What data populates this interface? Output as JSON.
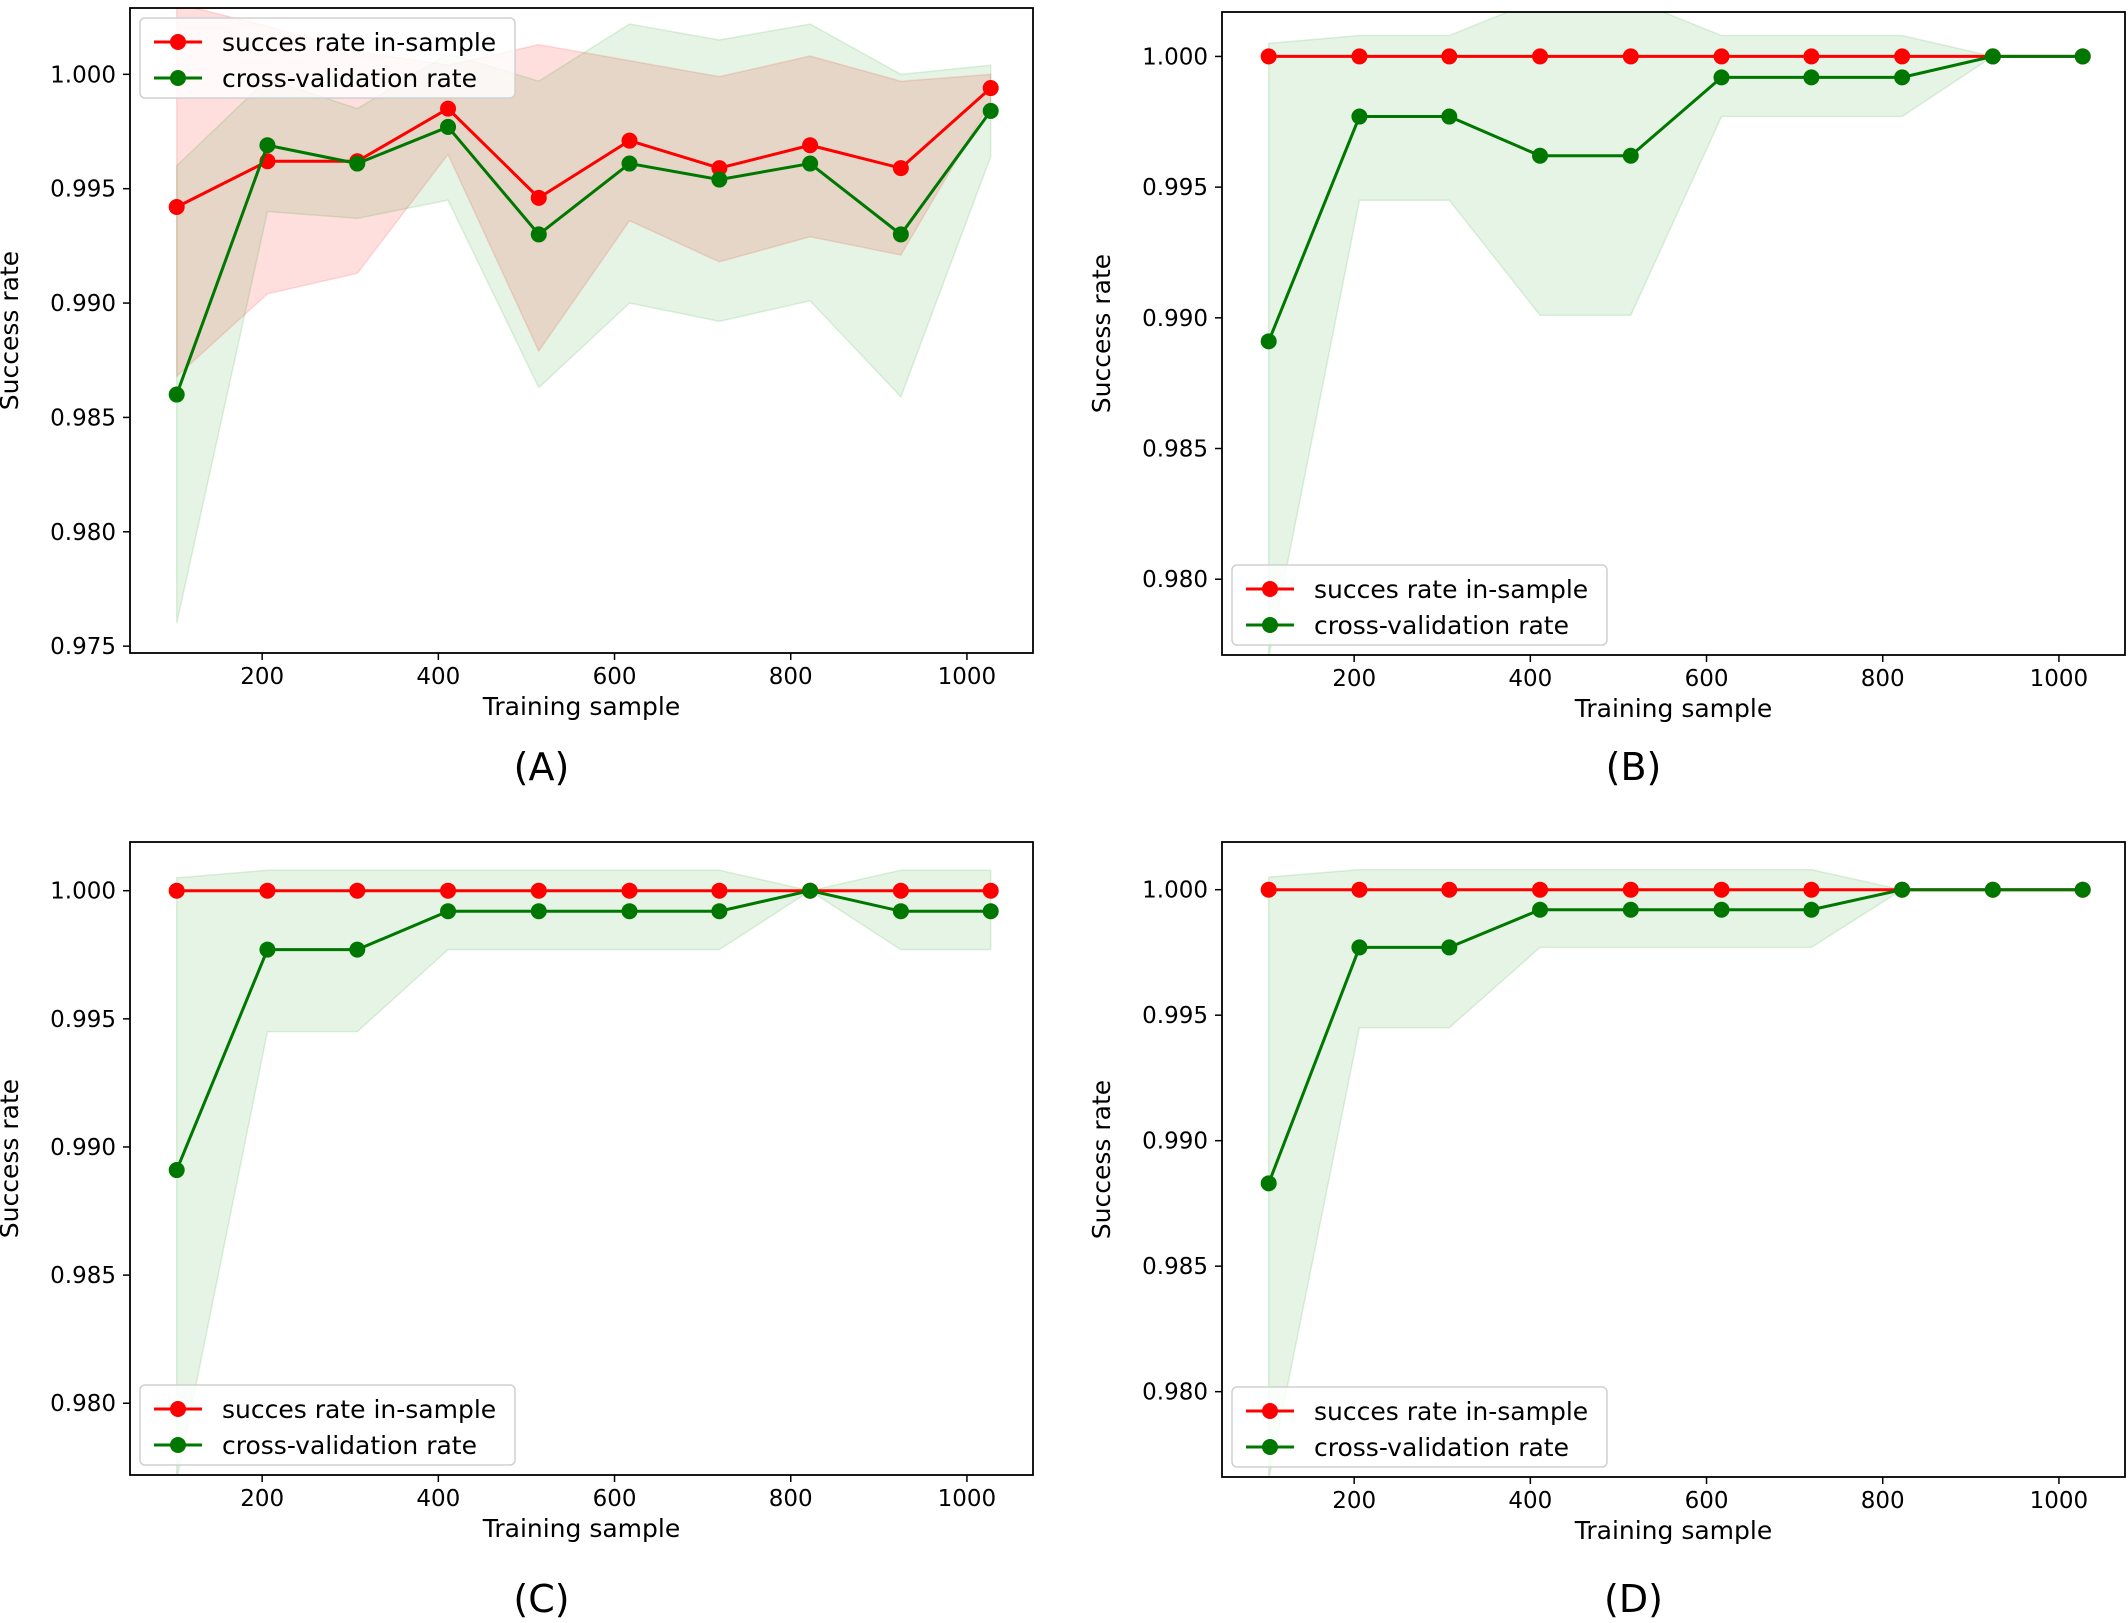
{
  "chart_data": [
    {
      "panel_label": "(A)",
      "type": "line",
      "xlabel": "Training sample",
      "ylabel": "Success rate",
      "xticks": [
        200,
        400,
        600,
        800,
        1000
      ],
      "yticks": [
        0.975,
        0.98,
        0.985,
        0.99,
        0.995,
        1.0
      ],
      "tick_labels_x": [
        "200",
        "400",
        "600",
        "800",
        "1000"
      ],
      "tick_labels_y": [
        "0.975",
        "0.980",
        "0.985",
        "0.990",
        "0.995",
        "1.000"
      ],
      "xlim": [
        50,
        1075
      ],
      "ylim": [
        0.9747,
        1.0029
      ],
      "grid": false,
      "legend_position": "upper-left",
      "x": [
        103,
        206,
        308,
        411,
        514,
        617,
        719,
        822,
        925,
        1027
      ],
      "series": [
        {
          "name": "succes rate in-sample",
          "color": "#ff0000",
          "values": [
            0.9942,
            0.9962,
            0.9962,
            0.9985,
            0.9946,
            0.9971,
            0.9959,
            0.9969,
            0.9959,
            0.9994
          ],
          "band_lower": [
            0.9868,
            0.9904,
            0.9913,
            0.9965,
            0.9879,
            0.9936,
            0.9918,
            0.9929,
            0.9921,
            0.9988
          ],
          "band_upper": [
            1.0031,
            1.0021,
            1.001,
            1.0004,
            1.0013,
            1.0006,
            0.9999,
            1.0008,
            0.9997,
            1.0
          ]
        },
        {
          "name": "cross-validation rate",
          "color": "#007700",
          "values": [
            0.986,
            0.9969,
            0.9961,
            0.9977,
            0.993,
            0.9961,
            0.9954,
            0.9961,
            0.993,
            0.9984
          ],
          "band_lower": [
            0.976,
            0.994,
            0.9937,
            0.9945,
            0.9863,
            0.99,
            0.9892,
            0.9901,
            0.9859,
            0.9964
          ],
          "band_upper": [
            0.996,
            0.9998,
            0.9985,
            1.0009,
            0.9997,
            1.0022,
            1.0015,
            1.0022,
            1.0,
            1.0004
          ]
        }
      ]
    },
    {
      "panel_label": "(B)",
      "type": "line",
      "xlabel": "Training sample",
      "ylabel": "Success rate",
      "xticks": [
        200,
        400,
        600,
        800,
        1000
      ],
      "yticks": [
        0.98,
        0.985,
        0.99,
        0.995,
        1.0
      ],
      "tick_labels_x": [
        "200",
        "400",
        "600",
        "800",
        "1000"
      ],
      "tick_labels_y": [
        "0.980",
        "0.985",
        "0.990",
        "0.995",
        "1.000"
      ],
      "xlim": [
        50,
        1075
      ],
      "ylim": [
        0.9771,
        1.0017
      ],
      "grid": false,
      "legend_position": "lower-left",
      "x": [
        103,
        206,
        308,
        411,
        514,
        617,
        719,
        822,
        925,
        1027
      ],
      "series": [
        {
          "name": "succes rate in-sample",
          "color": "#ff0000",
          "values": [
            1.0,
            1.0,
            1.0,
            1.0,
            1.0,
            1.0,
            1.0,
            1.0,
            1.0,
            1.0
          ],
          "band_lower": [
            1.0,
            1.0,
            1.0,
            1.0,
            1.0,
            1.0,
            1.0,
            1.0,
            1.0,
            1.0
          ],
          "band_upper": [
            1.0,
            1.0,
            1.0,
            1.0,
            1.0,
            1.0,
            1.0,
            1.0,
            1.0,
            1.0
          ]
        },
        {
          "name": "cross-validation rate",
          "color": "#007700",
          "values": [
            0.9891,
            0.9977,
            0.9977,
            0.9962,
            0.9962,
            0.9992,
            0.9992,
            0.9992,
            1.0,
            1.0
          ],
          "band_lower": [
            0.977,
            0.9945,
            0.9945,
            0.9901,
            0.9901,
            0.9977,
            0.9977,
            0.9977,
            1.0,
            1.0
          ],
          "band_upper": [
            1.0005,
            1.0008,
            1.0008,
            1.0022,
            1.0022,
            1.0008,
            1.0008,
            1.0008,
            1.0,
            1.0
          ]
        }
      ]
    },
    {
      "panel_label": "(C)",
      "type": "line",
      "xlabel": "Training sample",
      "ylabel": "Success rate",
      "xticks": [
        200,
        400,
        600,
        800,
        1000
      ],
      "yticks": [
        0.98,
        0.985,
        0.99,
        0.995,
        1.0
      ],
      "tick_labels_x": [
        "200",
        "400",
        "600",
        "800",
        "1000"
      ],
      "tick_labels_y": [
        "0.980",
        "0.985",
        "0.990",
        "0.995",
        "1.000"
      ],
      "xlim": [
        50,
        1075
      ],
      "ylim": [
        0.9772,
        1.0019
      ],
      "grid": false,
      "legend_position": "lower-left",
      "x": [
        103,
        206,
        308,
        411,
        514,
        617,
        719,
        822,
        925,
        1027
      ],
      "series": [
        {
          "name": "succes rate in-sample",
          "color": "#ff0000",
          "values": [
            1.0,
            1.0,
            1.0,
            1.0,
            1.0,
            1.0,
            1.0,
            1.0,
            1.0,
            1.0
          ],
          "band_lower": [
            1.0,
            1.0,
            1.0,
            1.0,
            1.0,
            1.0,
            1.0,
            1.0,
            1.0,
            1.0
          ],
          "band_upper": [
            1.0,
            1.0,
            1.0,
            1.0,
            1.0,
            1.0,
            1.0,
            1.0,
            1.0,
            1.0
          ]
        },
        {
          "name": "cross-validation rate",
          "color": "#007700",
          "values": [
            0.9891,
            0.9977,
            0.9977,
            0.9992,
            0.9992,
            0.9992,
            0.9992,
            1.0,
            0.9992,
            0.9992
          ],
          "band_lower": [
            0.977,
            0.9945,
            0.9945,
            0.9977,
            0.9977,
            0.9977,
            0.9977,
            1.0,
            0.9977,
            0.9977
          ],
          "band_upper": [
            1.0005,
            1.0008,
            1.0008,
            1.0008,
            1.0008,
            1.0008,
            1.0008,
            1.0,
            1.0008,
            1.0008
          ]
        }
      ]
    },
    {
      "panel_label": "(D)",
      "type": "line",
      "xlabel": "Training sample",
      "ylabel": "Success rate",
      "xticks": [
        200,
        400,
        600,
        800,
        1000
      ],
      "yticks": [
        0.98,
        0.985,
        0.99,
        0.995,
        1.0
      ],
      "tick_labels_x": [
        "200",
        "400",
        "600",
        "800",
        "1000"
      ],
      "tick_labels_y": [
        "0.980",
        "0.985",
        "0.990",
        "0.995",
        "1.000"
      ],
      "xlim": [
        50,
        1075
      ],
      "ylim": [
        0.9766,
        1.0019
      ],
      "grid": false,
      "legend_position": "lower-left",
      "x": [
        103,
        206,
        308,
        411,
        514,
        617,
        719,
        822,
        925,
        1027
      ],
      "series": [
        {
          "name": "succes rate in-sample",
          "color": "#ff0000",
          "values": [
            1.0,
            1.0,
            1.0,
            1.0,
            1.0,
            1.0,
            1.0,
            1.0,
            1.0,
            1.0
          ],
          "band_lower": [
            1.0,
            1.0,
            1.0,
            1.0,
            1.0,
            1.0,
            1.0,
            1.0,
            1.0,
            1.0
          ],
          "band_upper": [
            1.0,
            1.0,
            1.0,
            1.0,
            1.0,
            1.0,
            1.0,
            1.0,
            1.0,
            1.0
          ]
        },
        {
          "name": "cross-validation rate",
          "color": "#007700",
          "values": [
            0.9883,
            0.9977,
            0.9977,
            0.9992,
            0.9992,
            0.9992,
            0.9992,
            1.0,
            1.0,
            1.0
          ],
          "band_lower": [
            0.9765,
            0.9945,
            0.9945,
            0.9977,
            0.9977,
            0.9977,
            0.9977,
            1.0,
            1.0,
            1.0
          ],
          "band_upper": [
            1.0005,
            1.0008,
            1.0008,
            1.0008,
            1.0008,
            1.0008,
            1.0008,
            1.0,
            1.0,
            1.0
          ]
        }
      ]
    }
  ]
}
